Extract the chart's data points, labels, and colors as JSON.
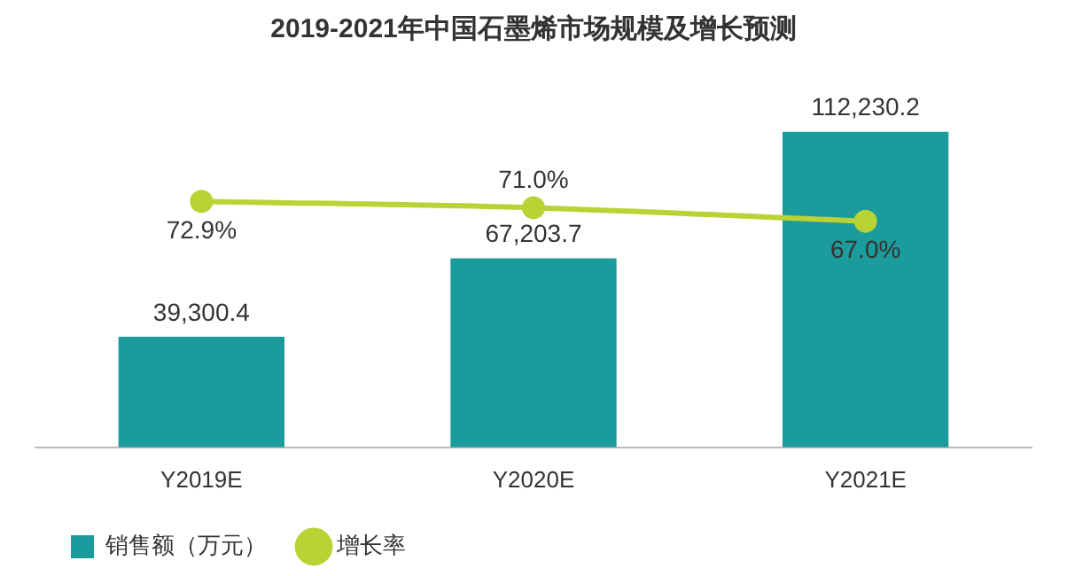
{
  "chart_data": {
    "type": "bar",
    "title": "2019-2021年中国石墨烯市场规模及增长预测",
    "categories": [
      "Y2019E",
      "Y2020E",
      "Y2021E"
    ],
    "series": [
      {
        "name": "销售额（万元）",
        "type": "bar",
        "color": "#1b9b9b",
        "values": [
          39300.4,
          67203.7,
          112230.2
        ],
        "value_labels": [
          "39,300.4",
          "67,203.7",
          "112,230.2"
        ]
      },
      {
        "name": "增长率",
        "type": "line",
        "axis": "y2",
        "color": "#b9d234",
        "marker": "circle",
        "values": [
          72.9,
          71.0,
          67.0
        ],
        "value_labels": [
          "72.9%",
          "71.0%",
          "67.0%"
        ]
      }
    ],
    "tick_labels": "x",
    "grid": false,
    "legend": "bottom"
  }
}
